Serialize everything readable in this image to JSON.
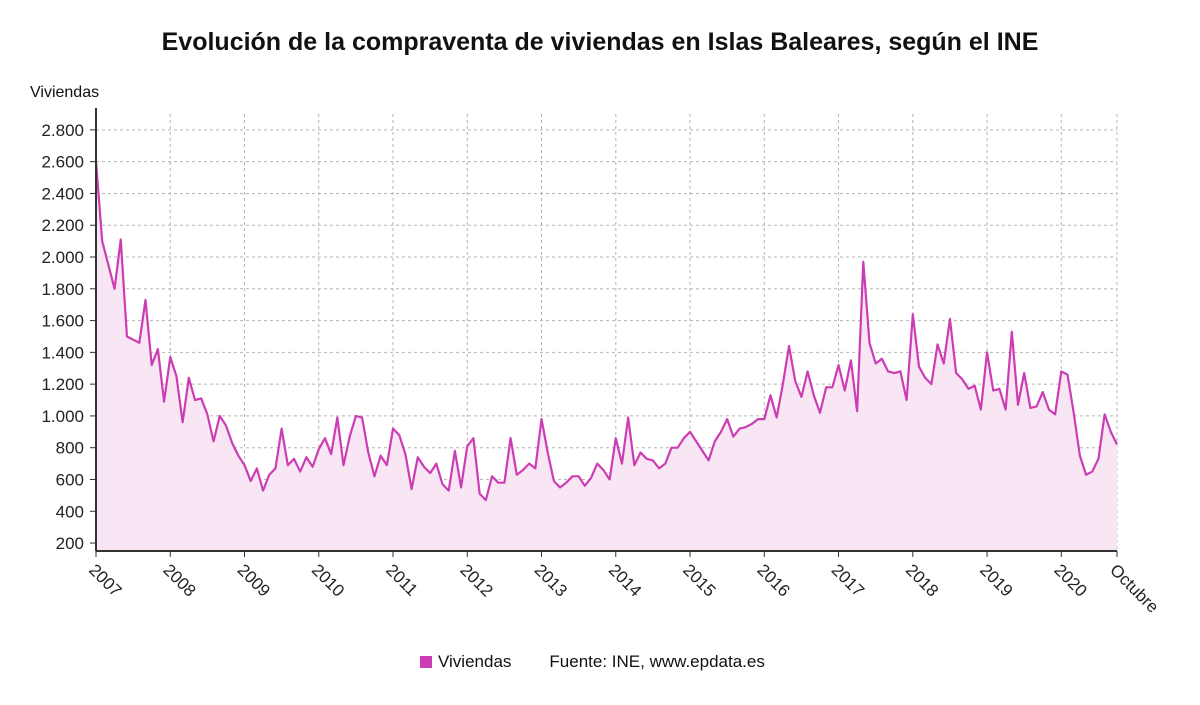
{
  "chart_data": {
    "type": "area",
    "title": "Evolución de la compraventa de viviendas en Islas Baleares, según el INE",
    "ylabel": "Viviendas",
    "xlabel": "",
    "ylim": [
      150,
      2900
    ],
    "yticks": [
      200,
      400,
      600,
      800,
      1000,
      1200,
      1400,
      1600,
      1800,
      2000,
      2200,
      2400,
      2600,
      2800
    ],
    "ytick_labels": [
      "200",
      "400",
      "600",
      "800",
      "1.000",
      "1.200",
      "1.400",
      "1.600",
      "1.800",
      "2.000",
      "2.200",
      "2.400",
      "2.600",
      "2.800"
    ],
    "xticks": [
      "2007",
      "2008",
      "2009",
      "2010",
      "2011",
      "2012",
      "2013",
      "2014",
      "2015",
      "2016",
      "2017",
      "2018",
      "2019",
      "2020",
      "Octubre"
    ],
    "grid": true,
    "series": [
      {
        "name": "Viviendas",
        "color": "#cc3db4",
        "x_start": "2007-01",
        "x_end": "2020-10",
        "frequency": "monthly",
        "values": [
          2600,
          2100,
          1950,
          1800,
          2110,
          1500,
          1480,
          1460,
          1730,
          1320,
          1420,
          1090,
          1370,
          1250,
          960,
          1240,
          1100,
          1110,
          1010,
          840,
          1000,
          940,
          830,
          750,
          690,
          590,
          670,
          530,
          630,
          670,
          920,
          690,
          730,
          650,
          740,
          680,
          790,
          860,
          760,
          990,
          690,
          870,
          1000,
          990,
          770,
          620,
          750,
          690,
          920,
          880,
          760,
          540,
          740,
          680,
          640,
          700,
          570,
          530,
          780,
          550,
          810,
          860,
          510,
          470,
          620,
          580,
          580,
          860,
          630,
          660,
          700,
          670,
          980,
          770,
          590,
          550,
          580,
          620,
          620,
          560,
          610,
          700,
          660,
          600,
          860,
          700,
          990,
          690,
          770,
          730,
          720,
          670,
          700,
          800,
          800,
          860,
          900,
          840,
          780,
          720,
          840,
          900,
          980,
          870,
          920,
          930,
          950,
          980,
          980,
          1130,
          990,
          1200,
          1440,
          1220,
          1120,
          1280,
          1130,
          1020,
          1180,
          1180,
          1320,
          1160,
          1350,
          1030,
          1970,
          1460,
          1330,
          1360,
          1280,
          1270,
          1280,
          1100,
          1640,
          1310,
          1240,
          1200,
          1450,
          1330,
          1610,
          1270,
          1230,
          1170,
          1190,
          1040,
          1400,
          1160,
          1170,
          1040,
          1530,
          1070,
          1270,
          1050,
          1060,
          1150,
          1040,
          1010,
          1280,
          1260,
          1020,
          750,
          630,
          650,
          730,
          1010,
          900,
          820
        ]
      }
    ],
    "source": "Fuente: INE, www.epdata.es"
  }
}
